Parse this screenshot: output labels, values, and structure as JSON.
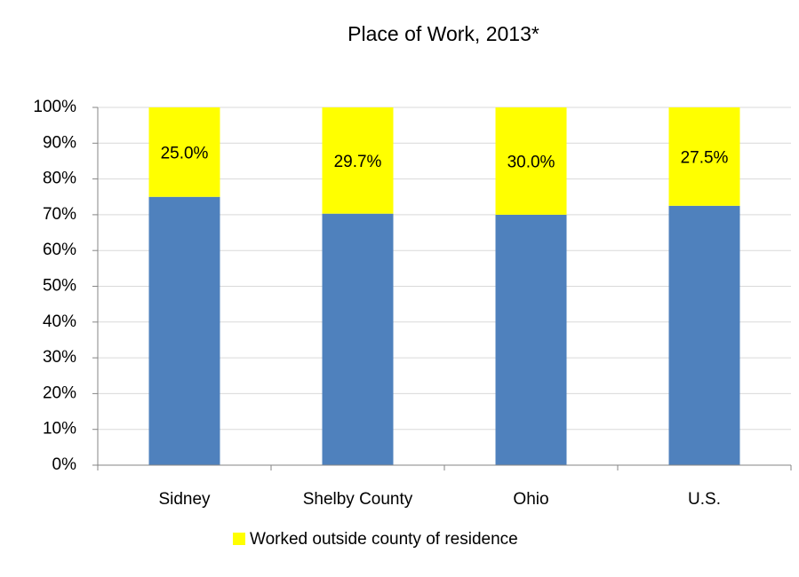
{
  "chart_data": {
    "type": "stacked_bar",
    "title": "Place of Work, 2013*",
    "categories": [
      "Sidney",
      "Shelby County",
      "Ohio",
      "U.S."
    ],
    "series": [
      {
        "color": "#4f81bd",
        "values": [
          75.0,
          70.3,
          70.0,
          72.5
        ]
      },
      {
        "name": "Worked outside county of residence",
        "color": "#ffff00",
        "values": [
          25.0,
          29.7,
          30.0,
          27.5
        ],
        "value_labels": [
          "25.0%",
          "29.7%",
          "30.0%",
          "27.5%"
        ]
      }
    ],
    "ylim": [
      0,
      100
    ],
    "yticks": [
      {
        "value": 0,
        "label": "0%"
      },
      {
        "value": 10,
        "label": "10%"
      },
      {
        "value": 20,
        "label": "20%"
      },
      {
        "value": 30,
        "label": "30%"
      },
      {
        "value": 40,
        "label": "40%"
      },
      {
        "value": 50,
        "label": "50%"
      },
      {
        "value": 60,
        "label": "60%"
      },
      {
        "value": 70,
        "label": "70%"
      },
      {
        "value": 80,
        "label": "80%"
      },
      {
        "value": 90,
        "label": "90%"
      },
      {
        "value": 100,
        "label": "100%"
      }
    ],
    "grid": true,
    "legend": "bottom"
  }
}
